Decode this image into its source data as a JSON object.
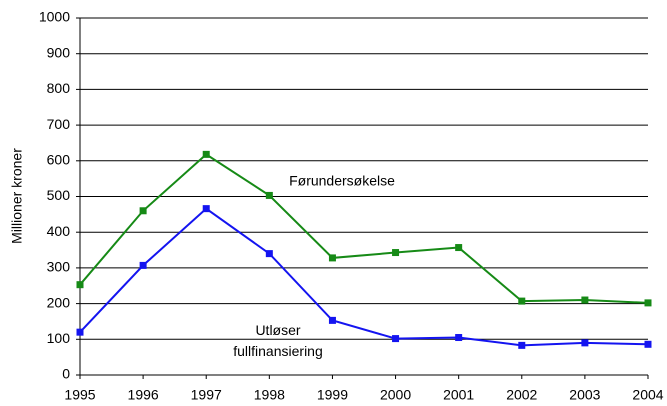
{
  "chart_data": {
    "type": "line",
    "y_label": "Millioner kroner",
    "categories": [
      "1995",
      "1996",
      "1997",
      "1998",
      "1999",
      "2000",
      "2001",
      "2002",
      "2003",
      "2004"
    ],
    "series": [
      {
        "name": "Førundersøkelse",
        "color": "#168a16",
        "values": [
          253,
          460,
          618,
          503,
          328,
          343,
          357,
          207,
          210,
          202
        ]
      },
      {
        "name": "Utløser fullfinansiering",
        "color": "#1414f0",
        "values": [
          120,
          307,
          466,
          340,
          153,
          102,
          105,
          83,
          90,
          86
        ]
      }
    ],
    "ylim": [
      0,
      1000
    ],
    "yticks": [
      0,
      100,
      200,
      300,
      400,
      500,
      600,
      700,
      800,
      900,
      1000
    ],
    "grid": true
  }
}
